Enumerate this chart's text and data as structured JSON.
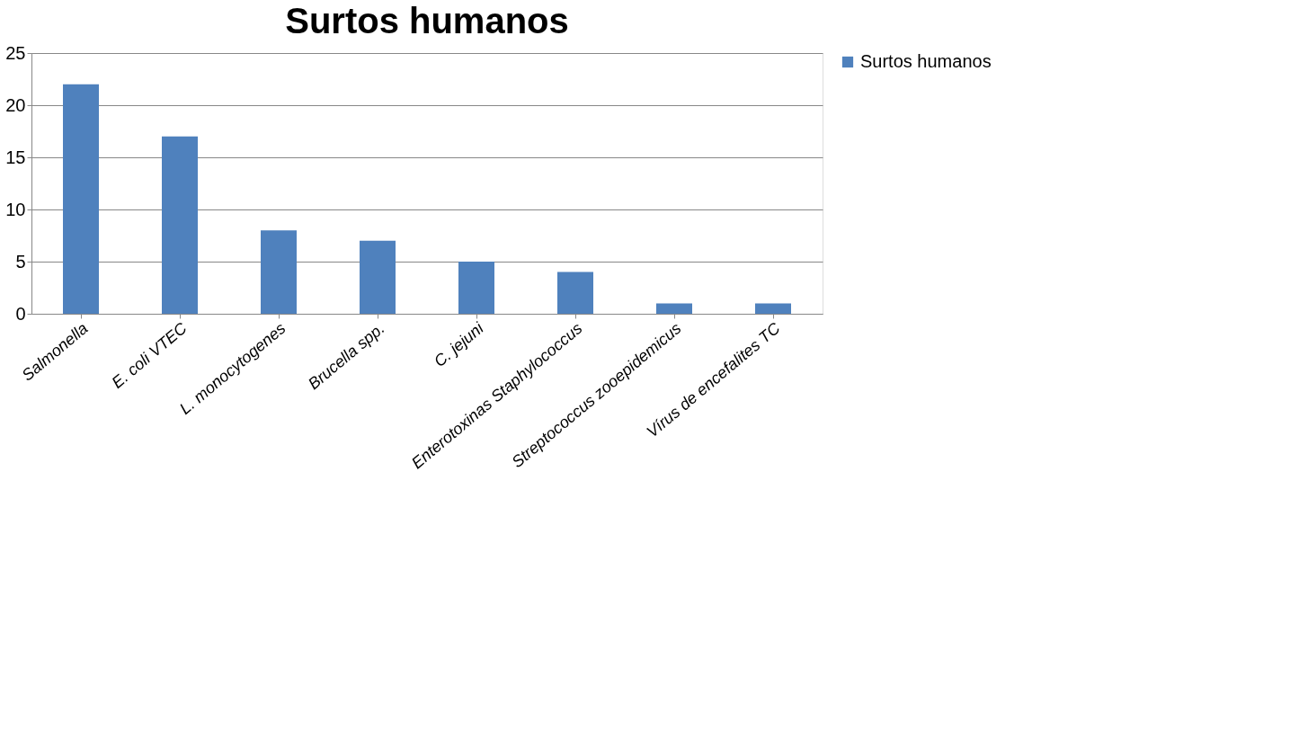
{
  "chart_data": {
    "type": "bar",
    "title": "Surtos humanos",
    "categories": [
      "Salmonella",
      "E. coli VTEC",
      "L. monocytogenes",
      "Brucella spp.",
      "C. jejuni",
      "Enterotoxinas Staphylococcus",
      "Streptococcus zooepidemicus",
      "Vírus de encefalites TC"
    ],
    "series": [
      {
        "name": "Surtos humanos",
        "color": "#4f81bd",
        "values": [
          22,
          17,
          8,
          7,
          5,
          4,
          1,
          1
        ]
      }
    ],
    "ylim": [
      0,
      25
    ],
    "yticks": [
      0,
      5,
      10,
      15,
      20,
      25
    ],
    "grid": "y",
    "legend": "right"
  }
}
